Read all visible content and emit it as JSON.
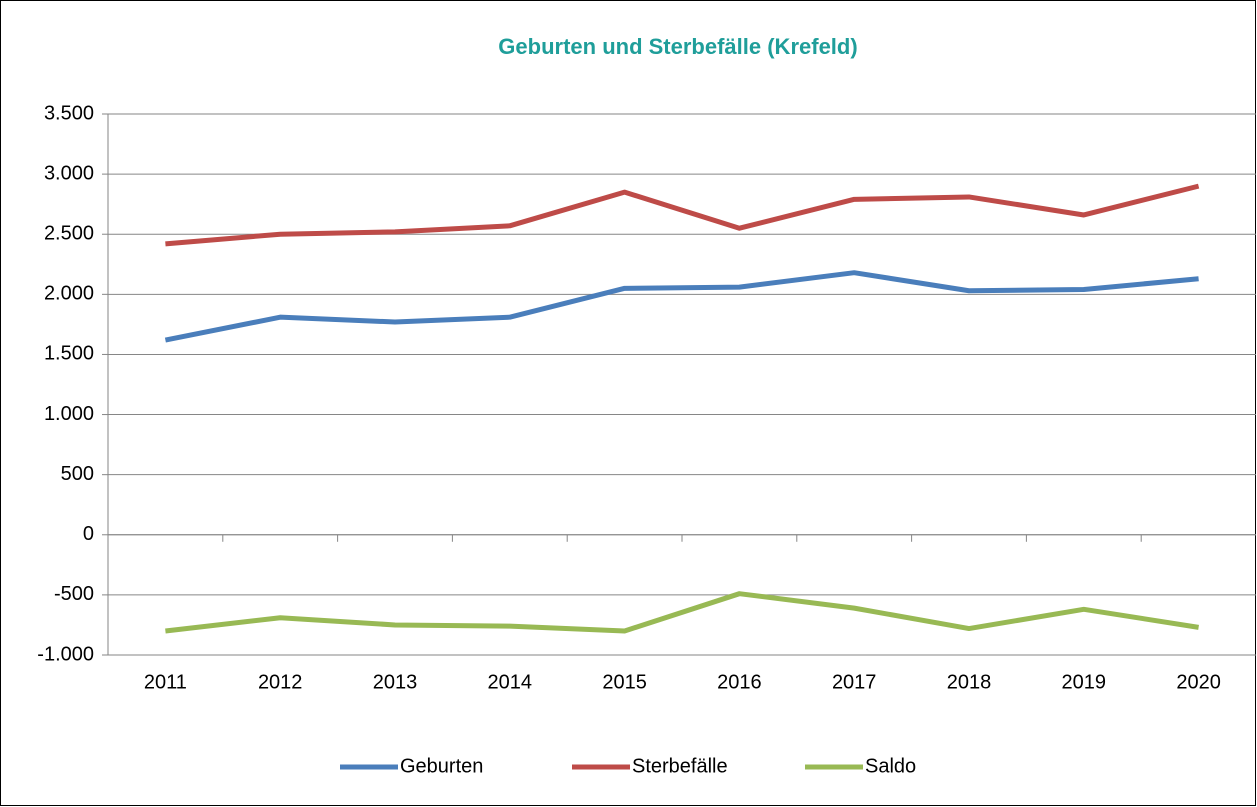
{
  "chart_data": {
    "type": "line",
    "title": "Geburten und Sterbefälle (Krefeld)",
    "categories": [
      "2011",
      "2012",
      "2013",
      "2014",
      "2015",
      "2016",
      "2017",
      "2018",
      "2019",
      "2020"
    ],
    "series": [
      {
        "name": "Geburten",
        "color": "#4a7ebb",
        "values": [
          1620,
          1810,
          1770,
          1810,
          2050,
          2060,
          2180,
          2030,
          2040,
          2130
        ]
      },
      {
        "name": "Sterbefälle",
        "color": "#be4b48",
        "values": [
          2420,
          2500,
          2520,
          2570,
          2850,
          2550,
          2790,
          2810,
          2660,
          2900
        ]
      },
      {
        "name": "Saldo",
        "color": "#98b954",
        "values": [
          -800,
          -690,
          -750,
          -760,
          -800,
          -490,
          -610,
          -780,
          -620,
          -770
        ]
      }
    ],
    "ylim": [
      -1000,
      3500
    ],
    "yticks": [
      {
        "value": -1000,
        "label": "-1.000"
      },
      -500,
      0,
      500,
      {
        "value": 1000,
        "label": "1.000"
      },
      {
        "value": 1500,
        "label": "1.500"
      },
      {
        "value": 2000,
        "label": "2.000"
      },
      {
        "value": 2500,
        "label": "2.500"
      },
      {
        "value": 3000,
        "label": "3.000"
      },
      {
        "value": 3500,
        "label": "3.500"
      }
    ],
    "grid": true,
    "legend": "bottom"
  }
}
